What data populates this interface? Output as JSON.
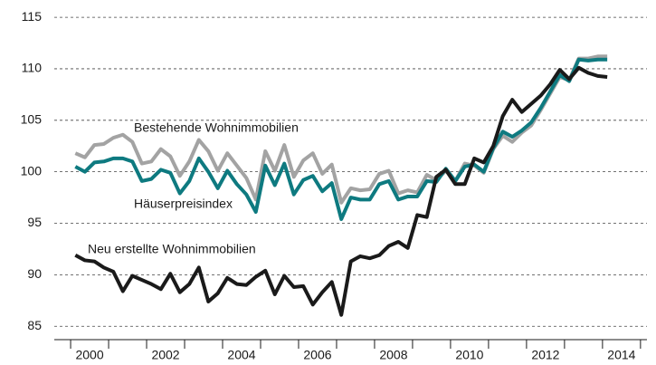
{
  "chart_data": {
    "type": "line",
    "x": [
      2000.125,
      2000.375,
      2000.625,
      2000.875,
      2001.125,
      2001.375,
      2001.625,
      2001.875,
      2002.125,
      2002.375,
      2002.625,
      2002.875,
      2003.125,
      2003.375,
      2003.625,
      2003.875,
      2004.125,
      2004.375,
      2004.625,
      2004.875,
      2005.125,
      2005.375,
      2005.625,
      2005.875,
      2006.125,
      2006.375,
      2006.625,
      2006.875,
      2007.125,
      2007.375,
      2007.625,
      2007.875,
      2008.125,
      2008.375,
      2008.625,
      2008.875,
      2009.125,
      2009.375,
      2009.625,
      2009.875,
      2010.125,
      2010.375,
      2010.625,
      2010.875,
      2011.125,
      2011.375,
      2011.625,
      2011.875,
      2012.125,
      2012.375,
      2012.625,
      2012.875,
      2013.125,
      2013.375,
      2013.625,
      2013.875,
      2014.125
    ],
    "series": [
      {
        "name": "Bestehende Wohnimmobilien",
        "color": "#a3a3a3",
        "values": [
          101.8,
          101.4,
          102.6,
          102.7,
          103.3,
          103.6,
          102.9,
          100.8,
          101.0,
          102.2,
          101.5,
          99.6,
          101.0,
          103.1,
          102.0,
          100.1,
          101.8,
          100.6,
          99.4,
          97.3,
          102.0,
          100.1,
          102.6,
          99.5,
          101.1,
          101.8,
          99.8,
          100.7,
          97.0,
          98.4,
          98.2,
          98.3,
          99.8,
          100.1,
          97.9,
          98.2,
          98.0,
          99.7,
          99.2,
          100.1,
          99.1,
          100.8,
          100.6,
          99.9,
          102.2,
          103.5,
          102.9,
          103.8,
          104.5,
          106.0,
          107.6,
          109.2,
          108.9,
          111.0,
          111.0,
          111.2,
          111.2
        ]
      },
      {
        "name": "Häuserpreisindex",
        "color": "#0e7a80",
        "values": [
          100.5,
          100.0,
          100.9,
          101.0,
          101.3,
          101.3,
          101.0,
          99.1,
          99.3,
          100.2,
          99.9,
          97.9,
          99.1,
          101.3,
          100.0,
          98.4,
          100.1,
          98.8,
          97.8,
          96.1,
          100.6,
          98.7,
          100.8,
          97.8,
          99.2,
          99.6,
          98.1,
          98.9,
          95.4,
          97.5,
          97.3,
          97.3,
          98.8,
          99.1,
          97.3,
          97.6,
          97.6,
          99.1,
          99.0,
          100.3,
          99.1,
          100.5,
          100.7,
          100.0,
          102.3,
          103.9,
          103.4,
          104.0,
          104.8,
          106.2,
          107.8,
          109.4,
          108.8,
          110.9,
          110.8,
          110.9,
          110.9
        ]
      },
      {
        "name": "Neu erstellte Wohnimmobilien",
        "color": "#1a1a1a",
        "values": [
          91.9,
          91.4,
          91.3,
          90.7,
          90.3,
          88.4,
          89.9,
          89.5,
          89.1,
          88.6,
          90.1,
          88.3,
          89.1,
          90.7,
          87.4,
          88.2,
          89.7,
          89.1,
          89.0,
          89.8,
          90.4,
          88.1,
          89.9,
          88.8,
          88.9,
          87.1,
          88.3,
          89.3,
          86.1,
          91.3,
          91.8,
          91.6,
          91.9,
          92.8,
          93.2,
          92.6,
          95.8,
          95.6,
          99.5,
          100.2,
          98.8,
          98.8,
          101.3,
          100.9,
          102.5,
          105.4,
          107.0,
          105.8,
          106.6,
          107.4,
          108.5,
          109.9,
          109.0,
          110.1,
          109.6,
          109.3,
          109.2
        ]
      }
    ],
    "xlim": [
      1999.57,
      2015.17
    ],
    "xticks": [
      2000,
      2002,
      2004,
      2006,
      2008,
      2010,
      2012,
      2014
    ],
    "ylim": [
      83.7,
      115.8
    ],
    "yticks": [
      85,
      90,
      95,
      100,
      105,
      110,
      115
    ],
    "grid": true
  }
}
